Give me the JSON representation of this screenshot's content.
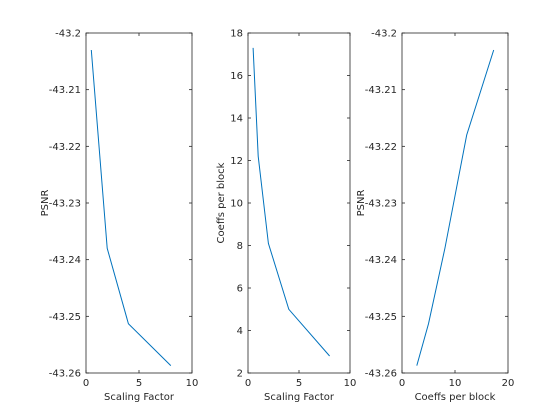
{
  "chart_data": [
    {
      "type": "line",
      "title": "",
      "xlabel": "Scaling Factor",
      "ylabel": "PSNR",
      "xlim": [
        0,
        10
      ],
      "ylim": [
        -43.26,
        -43.2
      ],
      "xticks": [
        0,
        5,
        10
      ],
      "yticks": [
        -43.26,
        -43.25,
        -43.24,
        -43.23,
        -43.22,
        -43.21,
        -43.2
      ],
      "xtick_labels": [
        "0",
        "5",
        "10"
      ],
      "ytick_labels": [
        "-43.26",
        "-43.25",
        "-43.24",
        "-43.23",
        "-43.22",
        "-43.21",
        "-43.2"
      ],
      "grid": false,
      "series": [
        {
          "x": [
            0.5,
            2,
            4,
            8
          ],
          "y": [
            -43.203,
            -43.238,
            -43.2513,
            -43.2587
          ],
          "color": "#0072bd"
        }
      ]
    },
    {
      "type": "line",
      "title": "",
      "xlabel": "Scaling Factor",
      "ylabel": "Coeffs per block",
      "xlim": [
        0,
        10
      ],
      "ylim": [
        2,
        18
      ],
      "xticks": [
        0,
        5,
        10
      ],
      "yticks": [
        2,
        4,
        6,
        8,
        10,
        12,
        14,
        16,
        18
      ],
      "xtick_labels": [
        "0",
        "5",
        "10"
      ],
      "ytick_labels": [
        "2",
        "4",
        "6",
        "8",
        "10",
        "12",
        "14",
        "16",
        "18"
      ],
      "grid": false,
      "series": [
        {
          "x": [
            0.5,
            1,
            2,
            4,
            8
          ],
          "y": [
            17.3,
            12.2,
            8.1,
            5.0,
            2.8
          ],
          "color": "#0072bd"
        }
      ]
    },
    {
      "type": "line",
      "title": "",
      "xlabel": "Coeffs per block",
      "ylabel": "PSNR",
      "xlim": [
        0,
        20
      ],
      "ylim": [
        -43.26,
        -43.2
      ],
      "xticks": [
        0,
        10,
        20
      ],
      "yticks": [
        -43.26,
        -43.25,
        -43.24,
        -43.23,
        -43.22,
        -43.21,
        -43.2
      ],
      "xtick_labels": [
        "0",
        "10",
        "20"
      ],
      "ytick_labels": [
        "-43.26",
        "-43.25",
        "-43.24",
        "-43.23",
        "-43.22",
        "-43.21",
        "-43.2"
      ],
      "grid": false,
      "series": [
        {
          "x": [
            2.8,
            5.0,
            8.1,
            12.2,
            17.3
          ],
          "y": [
            -43.2587,
            -43.2513,
            -43.238,
            -43.218,
            -43.203
          ],
          "color": "#0072bd"
        }
      ]
    }
  ]
}
